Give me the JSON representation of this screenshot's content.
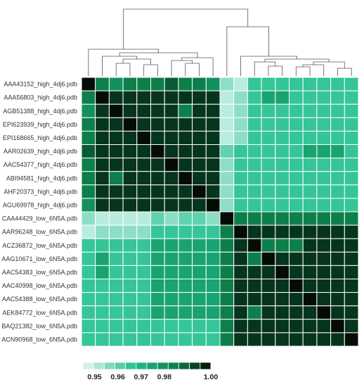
{
  "chart_data": {
    "type": "heatmap",
    "title": "",
    "rows": [
      "AAA43152_high_4dj6.pdb",
      "AAA56803_high_4dj6.pdb",
      "AGB51388_high_4dj6.pdb",
      "EPI623939_high_4dj6.pdb",
      "EPI168665_high_4dj6.pdb",
      "AAR02639_high_4dj6.pdb",
      "AAC54377_high_4dj6.pdb",
      "ABI94581_high_4dj6.pdb",
      "AHF20373_high_4dj6.pdb",
      "AGU69978_high_4dj6.pdb",
      "CAA44429_low_6N5A.pdb",
      "AAR96248_low_6N5A.pdb",
      "ACZ36872_low_6N5A.pdb",
      "AAG10671_low_6N5A.pdb",
      "AAC54383_low_6N5A.pdb",
      "AAC40998_low_6N5A.pdb",
      "AAC54388_low_6N5A.pdb",
      "AEK84772_low_6N5A.pdb",
      "BAQ21382_low_6N5A.pdb",
      "ACN90968_low_6N5A.pdb"
    ],
    "values": [
      [
        1.0,
        0.985,
        0.98,
        0.985,
        0.985,
        0.985,
        0.99,
        0.985,
        0.985,
        0.98,
        0.955,
        0.95,
        0.965,
        0.965,
        0.965,
        0.965,
        0.965,
        0.965,
        0.965,
        0.965
      ],
      [
        0.985,
        1.0,
        0.995,
        0.995,
        0.995,
        0.995,
        0.995,
        0.995,
        0.995,
        0.995,
        0.95,
        0.955,
        0.965,
        0.975,
        0.975,
        0.965,
        0.965,
        0.965,
        0.965,
        0.965
      ],
      [
        0.98,
        0.995,
        1.0,
        0.995,
        0.995,
        0.995,
        0.995,
        0.985,
        0.995,
        0.995,
        0.95,
        0.955,
        0.965,
        0.965,
        0.965,
        0.965,
        0.965,
        0.965,
        0.965,
        0.965
      ],
      [
        0.985,
        0.995,
        0.995,
        1.0,
        0.995,
        0.995,
        0.995,
        0.995,
        0.995,
        0.995,
        0.95,
        0.955,
        0.965,
        0.965,
        0.965,
        0.965,
        0.965,
        0.965,
        0.965,
        0.965
      ],
      [
        0.985,
        0.995,
        0.995,
        0.995,
        1.0,
        0.995,
        0.995,
        0.995,
        0.995,
        0.995,
        0.95,
        0.955,
        0.965,
        0.965,
        0.965,
        0.965,
        0.965,
        0.965,
        0.965,
        0.965
      ],
      [
        0.99,
        0.995,
        0.995,
        0.995,
        0.995,
        1.0,
        0.995,
        0.995,
        0.995,
        0.995,
        0.96,
        0.965,
        0.965,
        0.965,
        0.965,
        0.965,
        0.975,
        0.975,
        0.975,
        0.965
      ],
      [
        0.985,
        0.995,
        0.995,
        0.995,
        0.995,
        0.995,
        1.0,
        0.995,
        0.995,
        0.995,
        0.955,
        0.965,
        0.965,
        0.965,
        0.965,
        0.965,
        0.965,
        0.965,
        0.965,
        0.965
      ],
      [
        0.985,
        0.995,
        0.985,
        0.995,
        0.995,
        0.995,
        0.995,
        1.0,
        0.995,
        0.995,
        0.955,
        0.965,
        0.965,
        0.965,
        0.965,
        0.965,
        0.965,
        0.965,
        0.965,
        0.965
      ],
      [
        0.985,
        0.995,
        0.995,
        0.995,
        0.995,
        0.995,
        0.995,
        0.995,
        1.0,
        0.995,
        0.955,
        0.965,
        0.965,
        0.965,
        0.965,
        0.965,
        0.965,
        0.965,
        0.965,
        0.965
      ],
      [
        0.98,
        0.995,
        0.995,
        0.995,
        0.995,
        0.995,
        0.995,
        0.995,
        0.995,
        1.0,
        0.955,
        0.965,
        0.965,
        0.965,
        0.965,
        0.965,
        0.965,
        0.965,
        0.965,
        0.965
      ],
      [
        0.955,
        0.95,
        0.95,
        0.95,
        0.95,
        0.96,
        0.955,
        0.96,
        0.96,
        0.955,
        1.0,
        0.985,
        0.985,
        0.985,
        0.985,
        0.985,
        0.985,
        0.985,
        0.985,
        0.985
      ],
      [
        0.95,
        0.955,
        0.955,
        0.955,
        0.955,
        0.965,
        0.965,
        0.965,
        0.965,
        0.965,
        0.985,
        1.0,
        0.995,
        0.995,
        0.995,
        0.995,
        0.995,
        0.995,
        0.995,
        0.995
      ],
      [
        0.965,
        0.965,
        0.965,
        0.965,
        0.965,
        0.975,
        0.975,
        0.975,
        0.975,
        0.975,
        0.985,
        0.995,
        1.0,
        0.985,
        0.985,
        0.985,
        0.995,
        0.995,
        0.995,
        0.995
      ],
      [
        0.965,
        0.975,
        0.965,
        0.965,
        0.965,
        0.975,
        0.975,
        0.975,
        0.975,
        0.975,
        0.985,
        0.995,
        0.985,
        1.0,
        0.995,
        0.995,
        0.995,
        0.995,
        0.995,
        0.995
      ],
      [
        0.965,
        0.975,
        0.965,
        0.965,
        0.965,
        0.975,
        0.975,
        0.975,
        0.975,
        0.975,
        0.985,
        0.995,
        0.995,
        0.995,
        1.0,
        0.995,
        0.995,
        0.995,
        0.995,
        0.995
      ],
      [
        0.965,
        0.965,
        0.965,
        0.965,
        0.965,
        0.975,
        0.975,
        0.975,
        0.975,
        0.975,
        0.985,
        0.995,
        0.995,
        0.995,
        0.995,
        1.0,
        0.995,
        0.995,
        0.995,
        0.995
      ],
      [
        0.965,
        0.965,
        0.965,
        0.965,
        0.965,
        0.975,
        0.975,
        0.975,
        0.975,
        0.975,
        0.985,
        0.995,
        0.995,
        0.995,
        0.995,
        0.995,
        1.0,
        0.995,
        0.995,
        0.995
      ],
      [
        0.965,
        0.965,
        0.965,
        0.965,
        0.965,
        0.975,
        0.975,
        0.975,
        0.975,
        0.975,
        0.985,
        0.995,
        0.985,
        0.995,
        0.995,
        0.995,
        0.995,
        1.0,
        0.995,
        0.995
      ],
      [
        0.965,
        0.965,
        0.965,
        0.965,
        0.965,
        0.965,
        0.965,
        0.965,
        0.965,
        0.965,
        0.985,
        0.995,
        0.995,
        0.995,
        0.995,
        0.995,
        0.995,
        0.995,
        1.0,
        0.995
      ],
      [
        0.965,
        0.965,
        0.965,
        0.965,
        0.965,
        0.965,
        0.965,
        0.965,
        0.965,
        0.965,
        0.985,
        0.995,
        0.995,
        0.995,
        0.995,
        0.995,
        0.995,
        0.995,
        0.995,
        1.0
      ]
    ],
    "colorbar": {
      "range": [
        0.945,
        1.0
      ],
      "ticks": [
        "0.95",
        "0.96",
        "0.97",
        "0.98",
        "1.00"
      ],
      "tick_values": [
        0.95,
        0.96,
        0.97,
        0.98,
        1.0
      ]
    },
    "palette": {
      "low": "#e6f7f6",
      "mid": "#23c08f",
      "high_mid": "#0b7a45",
      "high": "#030d06"
    }
  }
}
